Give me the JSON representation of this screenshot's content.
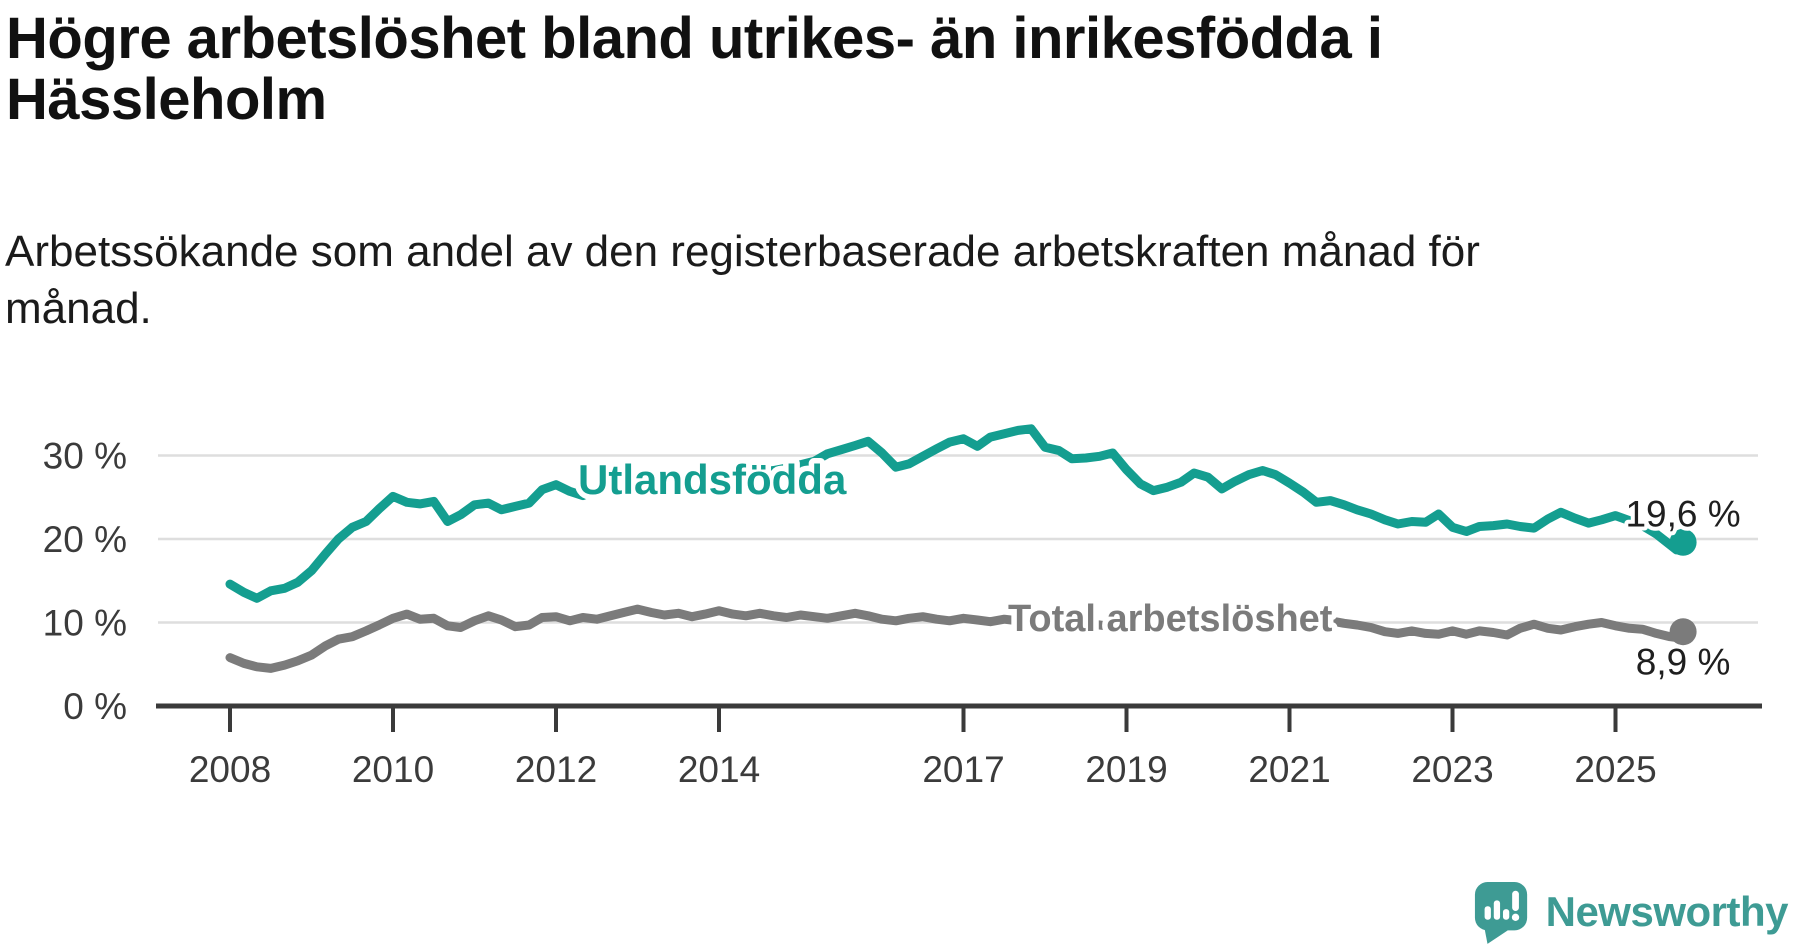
{
  "header": {
    "title_lines": [
      "Högre arbetslöshet bland utrikes- än inrikesfödda i",
      "Hässleholm"
    ],
    "subtitle_lines": [
      "Arbetssökande som andel av den registerbaserade arbetskraften månad för",
      "månad."
    ]
  },
  "colors": {
    "accent_teal": "#149e90",
    "series_gray": "#7b7b7b",
    "axis": "#3a3a3a",
    "gridline": "#dedede",
    "text_dark": "#1f1f1f",
    "tick_label": "#3b3b3b",
    "logo_teal": "#3e9b94"
  },
  "footer": {
    "brand": "Newsworthy",
    "logo_icon": "newsworthy-speech-bubble-chart-icon"
  },
  "chart_data": {
    "type": "line",
    "title": "Högre arbetslöshet bland utrikes- än inrikesfödda i Hässleholm",
    "subtitle": "Arbetssökande som andel av den registerbaserade arbetskraften månad för månad.",
    "xlabel": "",
    "ylabel": "",
    "grid": "horizontal",
    "legend_position": "inline-labels",
    "xlim": [
      2007.1,
      2026.3
    ],
    "ylim": [
      0,
      35
    ],
    "x_ticks": [
      2008,
      2010,
      2012,
      2014,
      2017,
      2019,
      2021,
      2023,
      2025
    ],
    "x_tick_labels": [
      "2008",
      "2010",
      "2012",
      "2014",
      "2017",
      "2019",
      "2021",
      "2023",
      "2025"
    ],
    "y_ticks": [
      0,
      10,
      20,
      30
    ],
    "y_tick_labels": [
      "0 %",
      "10 %",
      "20 %",
      "30 %"
    ],
    "series": [
      {
        "name": "Utlandsfödda",
        "label": "Utlandsfödda",
        "end_label": "19,6 %",
        "end_value": 19.6,
        "color": "#149e90",
        "points": [
          [
            2008.0,
            14.6
          ],
          [
            2008.17,
            13.6
          ],
          [
            2008.33,
            12.9
          ],
          [
            2008.5,
            13.8
          ],
          [
            2008.67,
            14.1
          ],
          [
            2008.83,
            14.8
          ],
          [
            2009.0,
            16.2
          ],
          [
            2009.17,
            18.2
          ],
          [
            2009.33,
            20.0
          ],
          [
            2009.5,
            21.4
          ],
          [
            2009.67,
            22.1
          ],
          [
            2009.83,
            23.6
          ],
          [
            2010.0,
            25.1
          ],
          [
            2010.17,
            24.4
          ],
          [
            2010.33,
            24.2
          ],
          [
            2010.5,
            24.5
          ],
          [
            2010.67,
            22.1
          ],
          [
            2010.83,
            22.9
          ],
          [
            2011.0,
            24.1
          ],
          [
            2011.17,
            24.3
          ],
          [
            2011.33,
            23.5
          ],
          [
            2011.5,
            23.9
          ],
          [
            2011.67,
            24.3
          ],
          [
            2011.83,
            25.9
          ],
          [
            2012.0,
            26.5
          ],
          [
            2012.17,
            25.7
          ],
          [
            2012.33,
            25.2
          ],
          [
            2012.5,
            25.9
          ],
          [
            2012.67,
            26.3
          ],
          [
            2012.83,
            26.7
          ],
          [
            2013.0,
            27.1
          ],
          [
            2013.17,
            27.0
          ],
          [
            2013.33,
            27.2
          ],
          [
            2013.5,
            27.1
          ],
          [
            2013.67,
            27.3
          ],
          [
            2013.83,
            27.5
          ],
          [
            2014.0,
            27.8
          ],
          [
            2014.17,
            27.5
          ],
          [
            2014.33,
            27.8
          ],
          [
            2014.5,
            28.0
          ],
          [
            2014.67,
            28.2
          ],
          [
            2014.83,
            28.5
          ],
          [
            2015.0,
            28.9
          ],
          [
            2015.17,
            29.3
          ],
          [
            2015.33,
            30.2
          ],
          [
            2015.5,
            30.7
          ],
          [
            2015.67,
            31.2
          ],
          [
            2015.83,
            31.7
          ],
          [
            2016.0,
            30.3
          ],
          [
            2016.17,
            28.6
          ],
          [
            2016.33,
            29.0
          ],
          [
            2016.5,
            29.9
          ],
          [
            2016.67,
            30.8
          ],
          [
            2016.83,
            31.6
          ],
          [
            2017.0,
            32.0
          ],
          [
            2017.17,
            31.1
          ],
          [
            2017.33,
            32.2
          ],
          [
            2017.5,
            32.6
          ],
          [
            2017.67,
            33.0
          ],
          [
            2017.83,
            33.2
          ],
          [
            2018.0,
            31.0
          ],
          [
            2018.17,
            30.6
          ],
          [
            2018.33,
            29.6
          ],
          [
            2018.5,
            29.7
          ],
          [
            2018.67,
            29.9
          ],
          [
            2018.83,
            30.3
          ],
          [
            2019.0,
            28.3
          ],
          [
            2019.17,
            26.6
          ],
          [
            2019.33,
            25.8
          ],
          [
            2019.5,
            26.2
          ],
          [
            2019.67,
            26.8
          ],
          [
            2019.83,
            27.9
          ],
          [
            2020.0,
            27.4
          ],
          [
            2020.17,
            26.0
          ],
          [
            2020.33,
            26.9
          ],
          [
            2020.5,
            27.7
          ],
          [
            2020.67,
            28.2
          ],
          [
            2020.83,
            27.7
          ],
          [
            2021.0,
            26.7
          ],
          [
            2021.17,
            25.6
          ],
          [
            2021.33,
            24.4
          ],
          [
            2021.5,
            24.6
          ],
          [
            2021.67,
            24.1
          ],
          [
            2021.83,
            23.5
          ],
          [
            2022.0,
            23.0
          ],
          [
            2022.17,
            22.3
          ],
          [
            2022.33,
            21.8
          ],
          [
            2022.5,
            22.1
          ],
          [
            2022.67,
            22.0
          ],
          [
            2022.83,
            23.0
          ],
          [
            2023.0,
            21.4
          ],
          [
            2023.17,
            20.9
          ],
          [
            2023.33,
            21.5
          ],
          [
            2023.5,
            21.6
          ],
          [
            2023.67,
            21.8
          ],
          [
            2023.83,
            21.5
          ],
          [
            2024.0,
            21.3
          ],
          [
            2024.17,
            22.4
          ],
          [
            2024.33,
            23.2
          ],
          [
            2024.5,
            22.5
          ],
          [
            2024.67,
            21.9
          ],
          [
            2024.83,
            22.3
          ],
          [
            2025.0,
            22.8
          ],
          [
            2025.17,
            22.2
          ],
          [
            2025.33,
            21.6
          ],
          [
            2025.5,
            20.6
          ],
          [
            2025.67,
            19.3
          ],
          [
            2025.75,
            18.7
          ],
          [
            2025.83,
            19.6
          ]
        ]
      },
      {
        "name": "Total arbetslöshet",
        "label": "Total arbetslöshet",
        "end_label": "8,9 %",
        "end_value": 8.9,
        "color": "#7b7b7b",
        "points": [
          [
            2008.0,
            5.8
          ],
          [
            2008.17,
            5.1
          ],
          [
            2008.33,
            4.7
          ],
          [
            2008.5,
            4.5
          ],
          [
            2008.67,
            4.9
          ],
          [
            2008.83,
            5.4
          ],
          [
            2009.0,
            6.1
          ],
          [
            2009.17,
            7.2
          ],
          [
            2009.33,
            8.0
          ],
          [
            2009.5,
            8.3
          ],
          [
            2009.67,
            9.0
          ],
          [
            2009.83,
            9.7
          ],
          [
            2010.0,
            10.5
          ],
          [
            2010.17,
            11.0
          ],
          [
            2010.33,
            10.4
          ],
          [
            2010.5,
            10.5
          ],
          [
            2010.67,
            9.6
          ],
          [
            2010.83,
            9.4
          ],
          [
            2011.0,
            10.2
          ],
          [
            2011.17,
            10.8
          ],
          [
            2011.33,
            10.3
          ],
          [
            2011.5,
            9.5
          ],
          [
            2011.67,
            9.7
          ],
          [
            2011.83,
            10.6
          ],
          [
            2012.0,
            10.7
          ],
          [
            2012.17,
            10.2
          ],
          [
            2012.33,
            10.6
          ],
          [
            2012.5,
            10.4
          ],
          [
            2012.67,
            10.8
          ],
          [
            2012.83,
            11.2
          ],
          [
            2013.0,
            11.6
          ],
          [
            2013.17,
            11.2
          ],
          [
            2013.33,
            10.9
          ],
          [
            2013.5,
            11.1
          ],
          [
            2013.67,
            10.7
          ],
          [
            2013.83,
            11.0
          ],
          [
            2014.0,
            11.4
          ],
          [
            2014.17,
            11.0
          ],
          [
            2014.33,
            10.8
          ],
          [
            2014.5,
            11.1
          ],
          [
            2014.67,
            10.8
          ],
          [
            2014.83,
            10.6
          ],
          [
            2015.0,
            10.9
          ],
          [
            2015.17,
            10.7
          ],
          [
            2015.33,
            10.5
          ],
          [
            2015.5,
            10.8
          ],
          [
            2015.67,
            11.1
          ],
          [
            2015.83,
            10.8
          ],
          [
            2016.0,
            10.4
          ],
          [
            2016.17,
            10.2
          ],
          [
            2016.33,
            10.5
          ],
          [
            2016.5,
            10.7
          ],
          [
            2016.67,
            10.4
          ],
          [
            2016.83,
            10.2
          ],
          [
            2017.0,
            10.5
          ],
          [
            2017.17,
            10.3
          ],
          [
            2017.33,
            10.1
          ],
          [
            2017.5,
            10.4
          ],
          [
            2017.67,
            10.2
          ],
          [
            2017.83,
            10.0
          ],
          [
            2018.0,
            10.2
          ],
          [
            2018.17,
            9.9
          ],
          [
            2018.33,
            9.7
          ],
          [
            2018.5,
            9.9
          ],
          [
            2018.67,
            9.7
          ],
          [
            2018.83,
            9.5
          ],
          [
            2019.0,
            9.7
          ],
          [
            2019.17,
            9.4
          ],
          [
            2019.33,
            9.2
          ],
          [
            2019.5,
            9.4
          ],
          [
            2019.67,
            9.2
          ],
          [
            2019.83,
            9.4
          ],
          [
            2020.0,
            9.6
          ],
          [
            2020.17,
            10.2
          ],
          [
            2020.33,
            10.5
          ],
          [
            2020.5,
            10.3
          ],
          [
            2020.67,
            10.5
          ],
          [
            2020.83,
            10.3
          ],
          [
            2021.0,
            10.5
          ],
          [
            2021.17,
            10.2
          ],
          [
            2021.33,
            10.0
          ],
          [
            2021.5,
            10.2
          ],
          [
            2021.67,
            9.9
          ],
          [
            2021.83,
            9.7
          ],
          [
            2022.0,
            9.4
          ],
          [
            2022.17,
            8.9
          ],
          [
            2022.33,
            8.7
          ],
          [
            2022.5,
            9.0
          ],
          [
            2022.67,
            8.7
          ],
          [
            2022.83,
            8.6
          ],
          [
            2023.0,
            9.0
          ],
          [
            2023.17,
            8.6
          ],
          [
            2023.33,
            9.0
          ],
          [
            2023.5,
            8.8
          ],
          [
            2023.67,
            8.5
          ],
          [
            2023.83,
            9.3
          ],
          [
            2024.0,
            9.8
          ],
          [
            2024.17,
            9.3
          ],
          [
            2024.33,
            9.1
          ],
          [
            2024.5,
            9.5
          ],
          [
            2024.67,
            9.8
          ],
          [
            2024.83,
            10.0
          ],
          [
            2025.0,
            9.6
          ],
          [
            2025.17,
            9.3
          ],
          [
            2025.33,
            9.2
          ],
          [
            2025.5,
            8.7
          ],
          [
            2025.67,
            8.3
          ],
          [
            2025.75,
            8.2
          ],
          [
            2025.83,
            8.9
          ]
        ]
      }
    ]
  }
}
